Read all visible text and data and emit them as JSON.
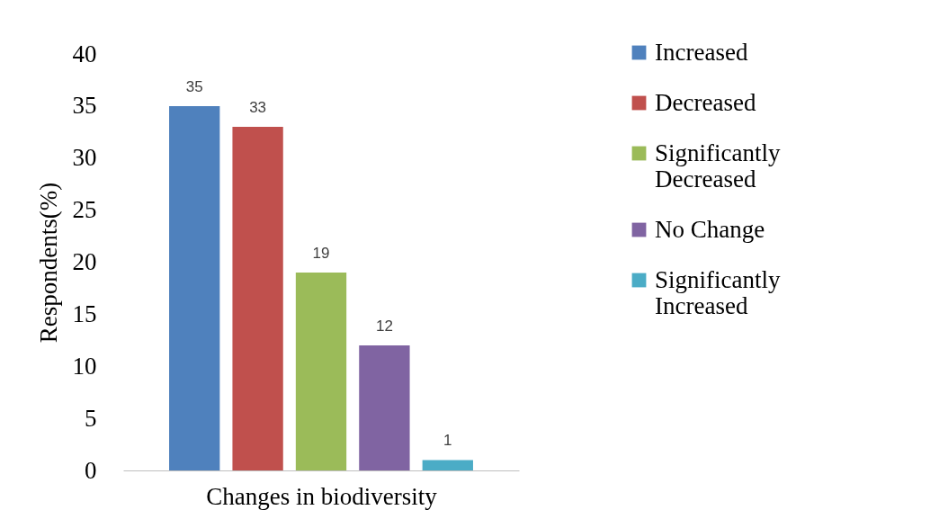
{
  "chart_data": {
    "type": "bar",
    "xlabel": "Changes in biodiversity",
    "ylabel": "Respondents(%)",
    "categories": [
      null
    ],
    "series": [
      {
        "name": "Increased",
        "color": "#4f81bd",
        "values": [
          35
        ]
      },
      {
        "name": "Decreased",
        "color": "#c0504d",
        "values": [
          33
        ]
      },
      {
        "name": "Significantly Decreased",
        "color": "#9bbb59",
        "values": [
          19
        ]
      },
      {
        "name": "No Change",
        "color": "#8064a2",
        "values": [
          12
        ]
      },
      {
        "name": "Significantly Increased",
        "color": "#4bacc6",
        "values": [
          1
        ]
      }
    ],
    "ylim": [
      0,
      40
    ],
    "yticks": [
      0,
      5,
      10,
      15,
      20,
      25,
      30,
      35,
      40
    ],
    "data_labels": true,
    "legend": "top right"
  }
}
